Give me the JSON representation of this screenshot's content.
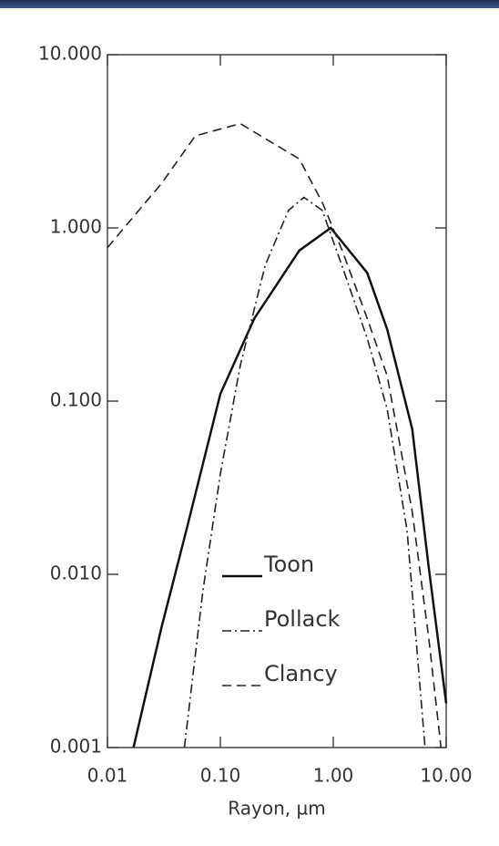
{
  "chart_data": {
    "type": "line",
    "xlabel": "Rayon, µm",
    "xscale": "log",
    "yscale": "log",
    "xlim": [
      0.01,
      10
    ],
    "ylim": [
      0.001,
      10
    ],
    "xticks": [
      {
        "value": 0.01,
        "label": "0.01"
      },
      {
        "value": 0.1,
        "label": "0.10"
      },
      {
        "value": 1,
        "label": "1.00"
      },
      {
        "value": 10,
        "label": "10.00"
      }
    ],
    "yticks": [
      {
        "value": 0.001,
        "label": "0.001"
      },
      {
        "value": 0.01,
        "label": "0.010"
      },
      {
        "value": 0.1,
        "label": "0.100"
      },
      {
        "value": 1,
        "label": "1.000"
      },
      {
        "value": 10,
        "label": "10.000"
      }
    ],
    "legend": "lower center",
    "series": [
      {
        "name": "Toon",
        "color": "#111111",
        "dash": "solid",
        "x": [
          0.017,
          0.03,
          0.05,
          0.1,
          0.2,
          0.5,
          0.95,
          2,
          3,
          5,
          7,
          10
        ],
        "values": [
          0.001,
          0.0049,
          0.018,
          0.11,
          0.3,
          0.74,
          1.0,
          0.55,
          0.26,
          0.069,
          0.011,
          0.0018
        ]
      },
      {
        "name": "Pollack",
        "color": "#222222",
        "dash": "dashdot",
        "x": [
          0.048,
          0.07,
          0.1,
          0.15,
          0.25,
          0.4,
          0.55,
          0.8,
          1.2,
          2,
          3,
          4.5,
          6.5
        ],
        "values": [
          0.001,
          0.008,
          0.038,
          0.16,
          0.61,
          1.26,
          1.5,
          1.26,
          0.6,
          0.23,
          0.09,
          0.018,
          0.001
        ]
      },
      {
        "name": "Clancy",
        "color": "#222222",
        "dash": "dashed",
        "x": [
          0.01,
          0.03,
          0.06,
          0.15,
          0.5,
          0.8,
          1.2,
          2,
          3,
          5,
          7,
          9
        ],
        "values": [
          0.77,
          1.8,
          3.4,
          4.0,
          2.5,
          1.4,
          0.74,
          0.3,
          0.14,
          0.023,
          0.0043,
          0.001
        ]
      }
    ]
  }
}
